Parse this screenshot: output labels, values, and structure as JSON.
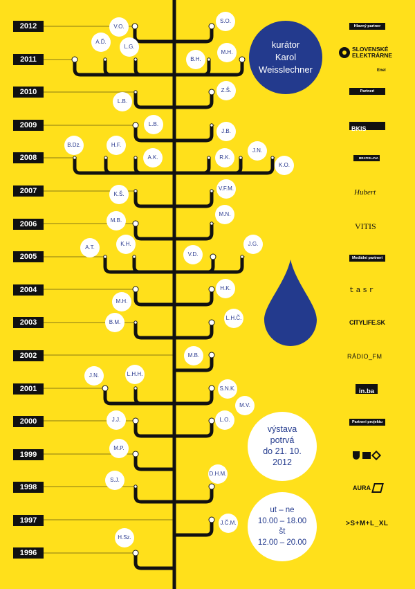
{
  "years": [
    "2012",
    "2011",
    "2010",
    "2009",
    "2008",
    "2007",
    "2006",
    "2005",
    "2004",
    "2003",
    "2002",
    "2001",
    "2000",
    "1999",
    "1998",
    "1997",
    "1996"
  ],
  "bubbles": {
    "vo": "V.O.",
    "so": "S.O.",
    "ad": "A.Ď.",
    "lg": "L.G.",
    "bh": "B.H.",
    "mh11": "M.H.",
    "zs": "Z.Š.",
    "lb10": "L.B.",
    "lb09": "L.B.",
    "jb": "J.B.",
    "bdz": "B.Dz.",
    "hf": "H.F.",
    "ak": "A.K.",
    "rk": "R.K.",
    "jn08": "J.N.",
    "ko": "K.O.",
    "ks": "K.Š.",
    "vfm": "V.F.M.",
    "mb06": "M.B.",
    "mn": "M.N.",
    "at": "A.T.",
    "kh": "K.H.",
    "vd": "V.D.",
    "jg": "J.G.",
    "hk": "H.K.",
    "mh04": "M.H.",
    "bm": "B.M.",
    "lhc": "L.H.Č.",
    "mb02": "M.B.",
    "jn01": "J.N.",
    "lhh": "L.H.H.",
    "snk": "S.N.K.",
    "mv": "M.V.",
    "jj": "J.J.",
    "lo": "L.O.",
    "mp": "M.P.",
    "sj": "S.J.",
    "dhm": "D.H.M.",
    "jcm": "J.Č.M.",
    "hsz": "H.Sz."
  },
  "curator": {
    "line1": "kurátor",
    "line2": "Karol",
    "line3": "Weisslechner"
  },
  "exhibition": {
    "line1": "výstava",
    "line2": "potrvá",
    "line3": "do 21. 10.",
    "line4": "2012"
  },
  "hours": {
    "days1": "ut – ne",
    "time1": "10.00 – 18.00",
    "days2": "št",
    "time2": "12.00 – 20.00"
  },
  "sponsors": {
    "main_partner": "Hlavný partner",
    "se_line1": "SLOVENSKÉ",
    "se_line2": "ELEKTRÁRNE",
    "enel": "Enel",
    "partners": "Partneri",
    "bkis": "BKIS",
    "bratislava": "BRATISLAVA",
    "hubert": "Hubert",
    "vitis": "VITIS",
    "media_partners": "Mediálni partneri",
    "tasr": "tasr",
    "citylife": "CITYLIFE.SK",
    "radio_fm": "RÁDIO_FM",
    "inba": "in.ba",
    "project_partners": "Partneri projektu",
    "aura": "AURA",
    "sml": ">S+M+L_XL"
  },
  "colors": {
    "background": "#ffe01b",
    "blue": "#233a8d",
    "ink": "#111111"
  }
}
